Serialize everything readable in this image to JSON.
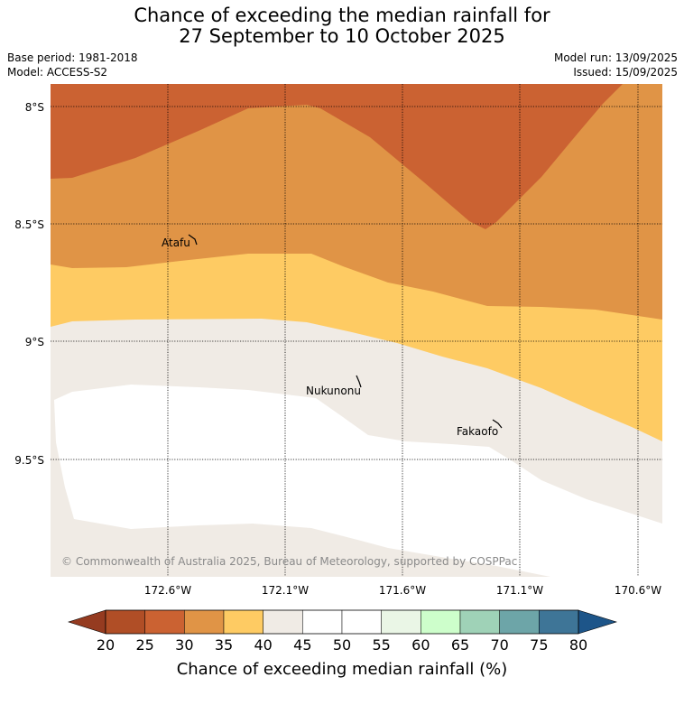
{
  "title": {
    "line1": "Chance of exceeding the median rainfall for",
    "line2": "27 September to 10 October 2025"
  },
  "info": {
    "base_period": "Base period: 1981-2018",
    "model": "Model: ACCESS-S2",
    "model_run": "Model run: 13/09/2025",
    "issued": "Issued: 15/09/2025"
  },
  "map": {
    "lat_labels": [
      "8°S",
      "8.5°S",
      "9°S",
      "9.5°S"
    ],
    "lon_labels": [
      "172.6°W",
      "172.1°W",
      "171.6°W",
      "171.1°W",
      "170.6°W"
    ],
    "places": [
      "Atafu",
      "Nukunonu",
      "Fakaofo"
    ],
    "copyright": "© Commonwealth of Australia 2025, Bureau of Meteorology, supported by COSPPac",
    "band_colors": {
      "20-25": "#b04e26",
      "25-30": "#cb6232",
      "30-35": "#e09446",
      "35-40": "#fecb63",
      "40-45": "#f0ebe5",
      "45-55": "#ffffff"
    }
  },
  "colorbar": {
    "ticks": [
      "20",
      "25",
      "30",
      "35",
      "40",
      "45",
      "50",
      "55",
      "60",
      "65",
      "70",
      "75",
      "80"
    ],
    "under_color": "#953b20",
    "over_color": "#1d5589",
    "colors": [
      "#b04e26",
      "#cb6232",
      "#e09446",
      "#fecb63",
      "#f0ebe5",
      "#ffffff",
      "#ffffff",
      "#eaf6e6",
      "#cdfecb",
      "#9fd2b7",
      "#6da5a8",
      "#3e7597"
    ],
    "label": "Chance of exceeding median rainfall (%)"
  }
}
